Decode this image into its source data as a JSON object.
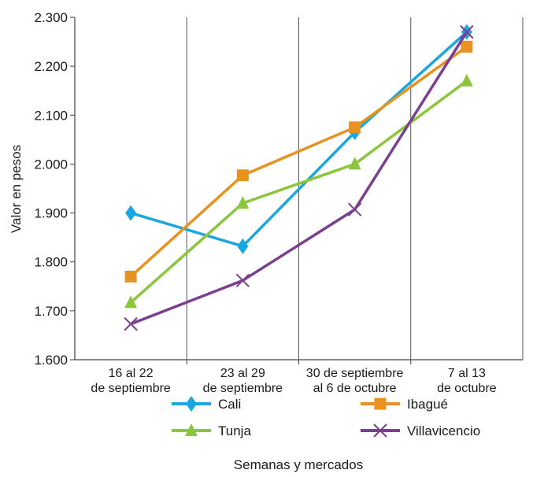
{
  "chart_data": {
    "type": "line",
    "title": "",
    "xlabel": "Semanas y mercados",
    "ylabel": "Valor en pesos",
    "ylim": [
      1600,
      2300
    ],
    "yticks": [
      {
        "value": 1600,
        "label": "1.600"
      },
      {
        "value": 1700,
        "label": "1.700"
      },
      {
        "value": 1800,
        "label": "1.800"
      },
      {
        "value": 1900,
        "label": "1.900"
      },
      {
        "value": 2000,
        "label": "2.000"
      },
      {
        "value": 2100,
        "label": "2.100"
      },
      {
        "value": 2200,
        "label": "2.200"
      },
      {
        "value": 2300,
        "label": "2.300"
      }
    ],
    "categories": [
      [
        "16 al 22",
        "de septiembre"
      ],
      [
        "23 al 29",
        "de septiembre"
      ],
      [
        "30 de septiembre",
        "al 6 de octubre"
      ],
      [
        "7 al 13",
        "de octubre"
      ]
    ],
    "grid": "vertical",
    "legend_position": "bottom",
    "series": [
      {
        "name": "Cali",
        "marker": "diamond",
        "color": "#1aa7df",
        "values": [
          1900,
          1832,
          2065,
          2270
        ]
      },
      {
        "name": "Ibagué",
        "marker": "square",
        "color": "#e8921f",
        "values": [
          1770,
          1977,
          2075,
          2240
        ]
      },
      {
        "name": "Tunja",
        "marker": "triangle",
        "color": "#8cc63e",
        "values": [
          1717,
          1920,
          2000,
          2170
        ]
      },
      {
        "name": "Villavicencio",
        "marker": "x",
        "color": "#7b3f91",
        "values": [
          1673,
          1762,
          1907,
          2270
        ]
      }
    ]
  }
}
